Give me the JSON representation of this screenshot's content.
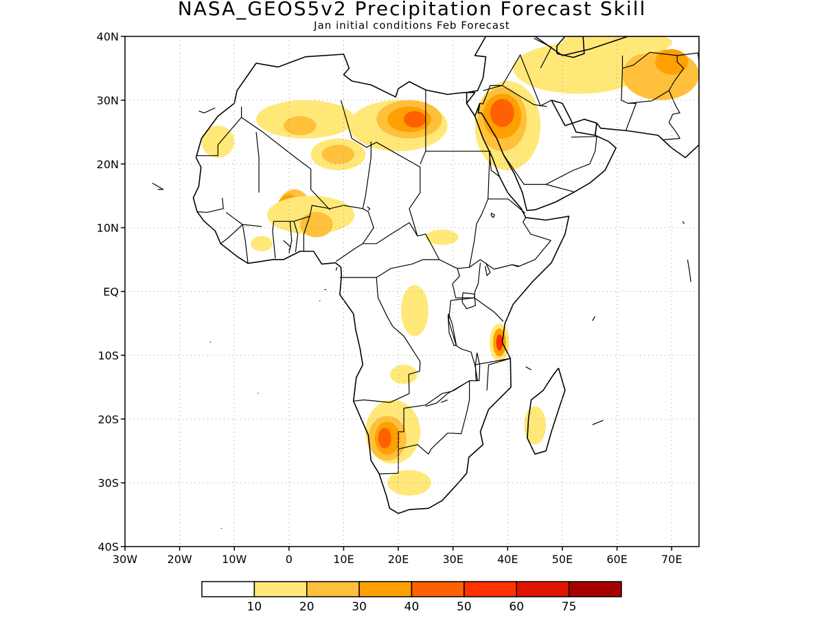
{
  "title": "NASA_GEOS5v2 Precipitation Forecast Skill",
  "subtitle": "Jan initial conditions  Feb Forecast",
  "map": {
    "lon_range": [
      -30,
      75
    ],
    "lat_range": [
      -40,
      40
    ],
    "lat_ticks": [
      {
        "value": 40,
        "label": "40N"
      },
      {
        "value": 30,
        "label": "30N"
      },
      {
        "value": 20,
        "label": "20N"
      },
      {
        "value": 10,
        "label": "10N"
      },
      {
        "value": 0,
        "label": "EQ"
      },
      {
        "value": -10,
        "label": "10S"
      },
      {
        "value": -20,
        "label": "20S"
      },
      {
        "value": -30,
        "label": "30S"
      },
      {
        "value": -40,
        "label": "40S"
      }
    ],
    "lon_ticks": [
      {
        "value": -30,
        "label": "30W"
      },
      {
        "value": -20,
        "label": "20W"
      },
      {
        "value": -10,
        "label": "10W"
      },
      {
        "value": 0,
        "label": "0"
      },
      {
        "value": 10,
        "label": "10E"
      },
      {
        "value": 20,
        "label": "20E"
      },
      {
        "value": 30,
        "label": "30E"
      },
      {
        "value": 40,
        "label": "40E"
      },
      {
        "value": 50,
        "label": "50E"
      },
      {
        "value": 60,
        "label": "60E"
      },
      {
        "value": 70,
        "label": "70E"
      }
    ],
    "grid": "dotted"
  },
  "colorbar": {
    "colors": [
      "#ffffff",
      "#ffe878",
      "#ffc03c",
      "#ffa000",
      "#ff6000",
      "#ff3200",
      "#e11400",
      "#a50000"
    ],
    "labels": [
      "10",
      "20",
      "30",
      "40",
      "50",
      "60",
      "75"
    ]
  },
  "skill_regions": [
    {
      "level": 2,
      "lon": 1,
      "lat": 13,
      "rx": 3,
      "ry": 3
    },
    {
      "level": 3,
      "lon": 0,
      "lat": 13,
      "rx": 2.2,
      "ry": 2.2
    },
    {
      "level": 4,
      "lon": 0,
      "lat": 13,
      "rx": 1.6,
      "ry": 1.6
    },
    {
      "level": 5,
      "lon": 0,
      "lat": 12.8,
      "rx": 1.1,
      "ry": 1.3
    },
    {
      "level": 6,
      "lon": 0,
      "lat": 12.8,
      "rx": 0.6,
      "ry": 0.8
    },
    {
      "level": 1,
      "lon": 4,
      "lat": 12,
      "rx": 8,
      "ry": 3
    },
    {
      "level": 2,
      "lon": 5,
      "lat": 10.5,
      "rx": 3,
      "ry": 2
    },
    {
      "level": 1,
      "lon": 20,
      "lat": 26,
      "rx": 9,
      "ry": 4
    },
    {
      "level": 2,
      "lon": 22,
      "lat": 27,
      "rx": 6,
      "ry": 3
    },
    {
      "level": 3,
      "lon": 22,
      "lat": 27,
      "rx": 4,
      "ry": 2
    },
    {
      "level": 4,
      "lon": 23,
      "lat": 27,
      "rx": 2,
      "ry": 1.3
    },
    {
      "level": 1,
      "lon": 3,
      "lat": 27,
      "rx": 9,
      "ry": 3
    },
    {
      "level": 2,
      "lon": 2,
      "lat": 26,
      "rx": 3,
      "ry": 1.5
    },
    {
      "level": 1,
      "lon": 9,
      "lat": 21.5,
      "rx": 5,
      "ry": 2.5
    },
    {
      "level": 2,
      "lon": 9,
      "lat": 21.5,
      "rx": 3,
      "ry": 1.5
    },
    {
      "level": 1,
      "lon": -13,
      "lat": 23.5,
      "rx": 3,
      "ry": 2.5
    },
    {
      "level": 1,
      "lon": 40,
      "lat": 26,
      "rx": 6,
      "ry": 7
    },
    {
      "level": 2,
      "lon": 39,
      "lat": 27,
      "rx": 4.5,
      "ry": 5
    },
    {
      "level": 3,
      "lon": 39,
      "lat": 27.5,
      "rx": 3.5,
      "ry": 3.5
    },
    {
      "level": 4,
      "lon": 39,
      "lat": 28,
      "rx": 2.2,
      "ry": 2.2
    },
    {
      "level": 1,
      "lon": 53,
      "lat": 35,
      "rx": 12,
      "ry": 4
    },
    {
      "level": 2,
      "lon": 68,
      "lat": 34,
      "rx": 7,
      "ry": 4
    },
    {
      "level": 3,
      "lon": 70,
      "lat": 36,
      "rx": 3,
      "ry": 2
    },
    {
      "level": 1,
      "lon": 60,
      "lat": 39,
      "rx": 10,
      "ry": 2
    },
    {
      "level": 1,
      "lon": 19,
      "lat": -22,
      "rx": 5,
      "ry": 5
    },
    {
      "level": 2,
      "lon": 18,
      "lat": -23,
      "rx": 3.5,
      "ry": 3.5
    },
    {
      "level": 3,
      "lon": 18,
      "lat": -23,
      "rx": 2.3,
      "ry": 2.6
    },
    {
      "level": 4,
      "lon": 17.5,
      "lat": -23,
      "rx": 1.2,
      "ry": 1.6
    },
    {
      "level": 1,
      "lon": 22,
      "lat": -30,
      "rx": 4,
      "ry": 2
    },
    {
      "level": 1,
      "lon": 38.5,
      "lat": -8,
      "rx": 1.8,
      "ry": 3
    },
    {
      "level": 3,
      "lon": 38.5,
      "lat": -8,
      "rx": 1.2,
      "ry": 2.2
    },
    {
      "level": 5,
      "lon": 38.5,
      "lat": -8,
      "rx": 0.6,
      "ry": 1.3
    },
    {
      "level": 1,
      "lon": 23,
      "lat": -3,
      "rx": 2.5,
      "ry": 4
    },
    {
      "level": 1,
      "lon": 45,
      "lat": -21,
      "rx": 2,
      "ry": 3
    },
    {
      "level": 1,
      "lon": 28,
      "lat": 8.5,
      "rx": 3,
      "ry": 1.2
    },
    {
      "level": 1,
      "lon": 21,
      "lat": -13,
      "rx": 2.5,
      "ry": 1.5
    },
    {
      "level": 1,
      "lon": -5,
      "lat": 7.5,
      "rx": 2,
      "ry": 1.2
    }
  ]
}
